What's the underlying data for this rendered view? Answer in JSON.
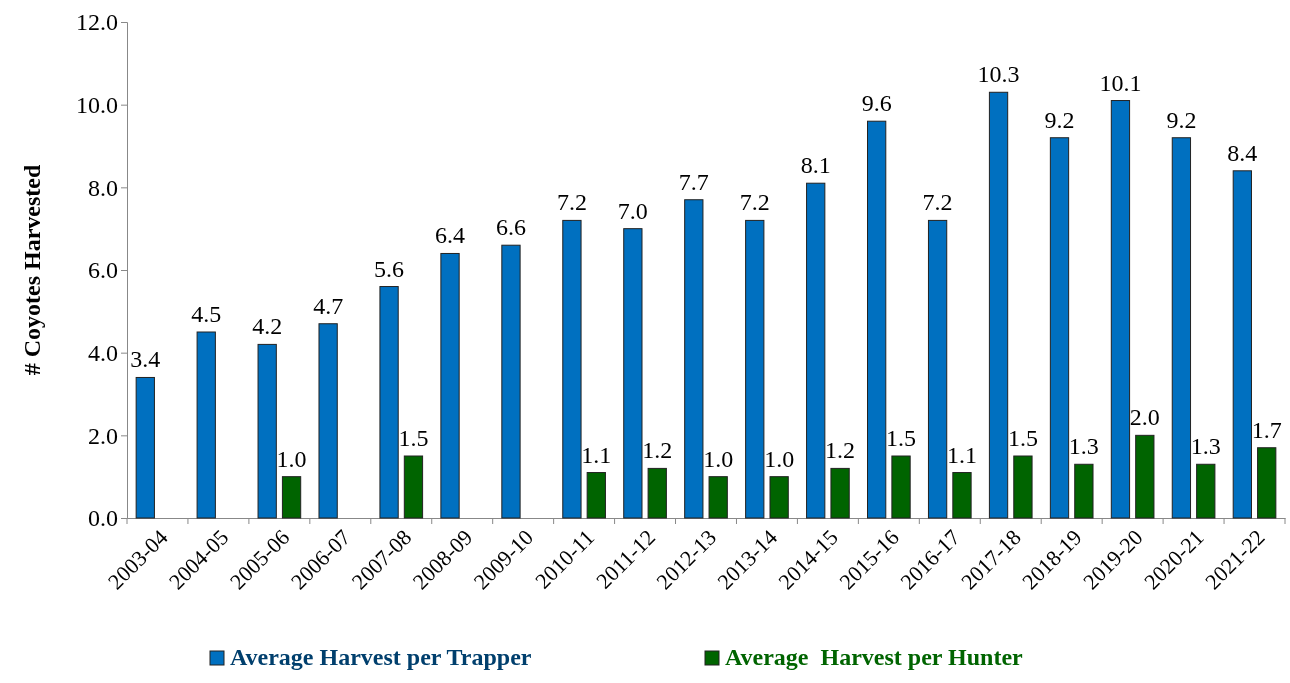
{
  "chart_data": {
    "type": "bar",
    "ylabel": "# Coyotes Harvested",
    "categories": [
      "2003-04",
      "2004-05",
      "2005-06",
      "2006-07",
      "2007-08",
      "2008-09",
      "2009-10",
      "2010-11",
      "2011-12",
      "2012-13",
      "2013-14",
      "2014-15",
      "2015-16",
      "2016-17",
      "2017-18",
      "2018-19",
      "2019-20",
      "2020-21",
      "2021-22"
    ],
    "series": [
      {
        "name": "Average Harvest per Trapper",
        "color": "#0070c0",
        "values": [
          3.4,
          4.5,
          4.2,
          4.7,
          5.6,
          6.4,
          6.6,
          7.2,
          7.0,
          7.7,
          7.2,
          8.1,
          9.6,
          7.2,
          10.3,
          9.2,
          10.1,
          9.2,
          8.4
        ],
        "value_labels": [
          "3.4",
          "4.5",
          "4.2",
          "4.7",
          "5.6",
          "6.4",
          "6.6",
          "7.2",
          "7.0",
          "7.7",
          "7.2",
          "8.1",
          "9.6",
          "7.2",
          "10.3",
          "9.2",
          "10.1",
          "9.2",
          "8.4"
        ]
      },
      {
        "name": "Average  Harvest per Hunter",
        "color": "#006400",
        "values": [
          null,
          null,
          1.0,
          null,
          1.5,
          null,
          null,
          1.1,
          1.2,
          1.0,
          1.0,
          1.2,
          1.5,
          1.1,
          1.5,
          1.3,
          2.0,
          1.3,
          1.7
        ],
        "value_labels": [
          null,
          null,
          "1.0",
          null,
          "1.5",
          null,
          null,
          "1.1",
          "1.2",
          "1.0",
          "1.0",
          "1.2",
          "1.5",
          "1.1",
          "1.5",
          "1.3",
          "2.0",
          "1.3",
          "1.7"
        ]
      }
    ],
    "ylim": [
      0,
      12
    ],
    "yticks": [
      {
        "value": 0,
        "label": "0.0"
      },
      {
        "value": 2,
        "label": "2.0"
      },
      {
        "value": 4,
        "label": "4.0"
      },
      {
        "value": 6,
        "label": "6.0"
      },
      {
        "value": 8,
        "label": "8.0"
      },
      {
        "value": 10,
        "label": "10.0"
      },
      {
        "value": 12,
        "label": "12.0"
      }
    ],
    "legend": "bottom",
    "grid": false
  }
}
